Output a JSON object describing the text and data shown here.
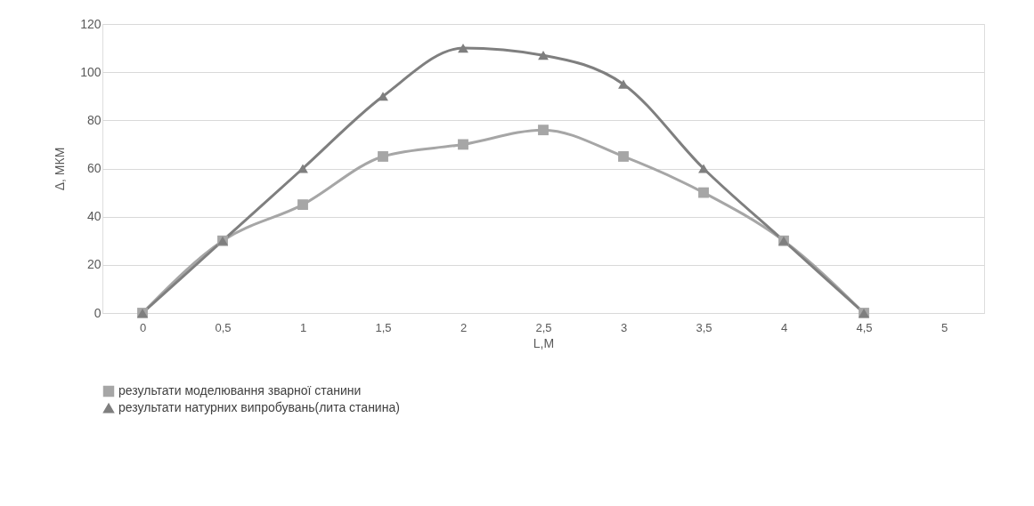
{
  "chart_data": {
    "type": "line",
    "xlabel": "L,М",
    "ylabel": "Δ, МКМ",
    "categories": [
      "0",
      "0,5",
      "1",
      "1,5",
      "2",
      "2,5",
      "3",
      "3,5",
      "4",
      "4,5",
      "5"
    ],
    "series": [
      {
        "name": "результати моделювання зварної станини",
        "color": "#a6a6a6",
        "marker": "square",
        "values": [
          0,
          30,
          45,
          65,
          70,
          76,
          65,
          50,
          30,
          0,
          null
        ]
      },
      {
        "name": "результати натурних випробувань(лита станина)",
        "color": "#7f7f7f",
        "marker": "triangle",
        "values": [
          0,
          30,
          60,
          90,
          110,
          107,
          95,
          60,
          30,
          0,
          null
        ]
      }
    ],
    "ylim": [
      0,
      120
    ],
    "yticks": [
      0,
      20,
      40,
      60,
      80,
      100,
      120
    ],
    "grid": "y",
    "legend": "bottom"
  }
}
